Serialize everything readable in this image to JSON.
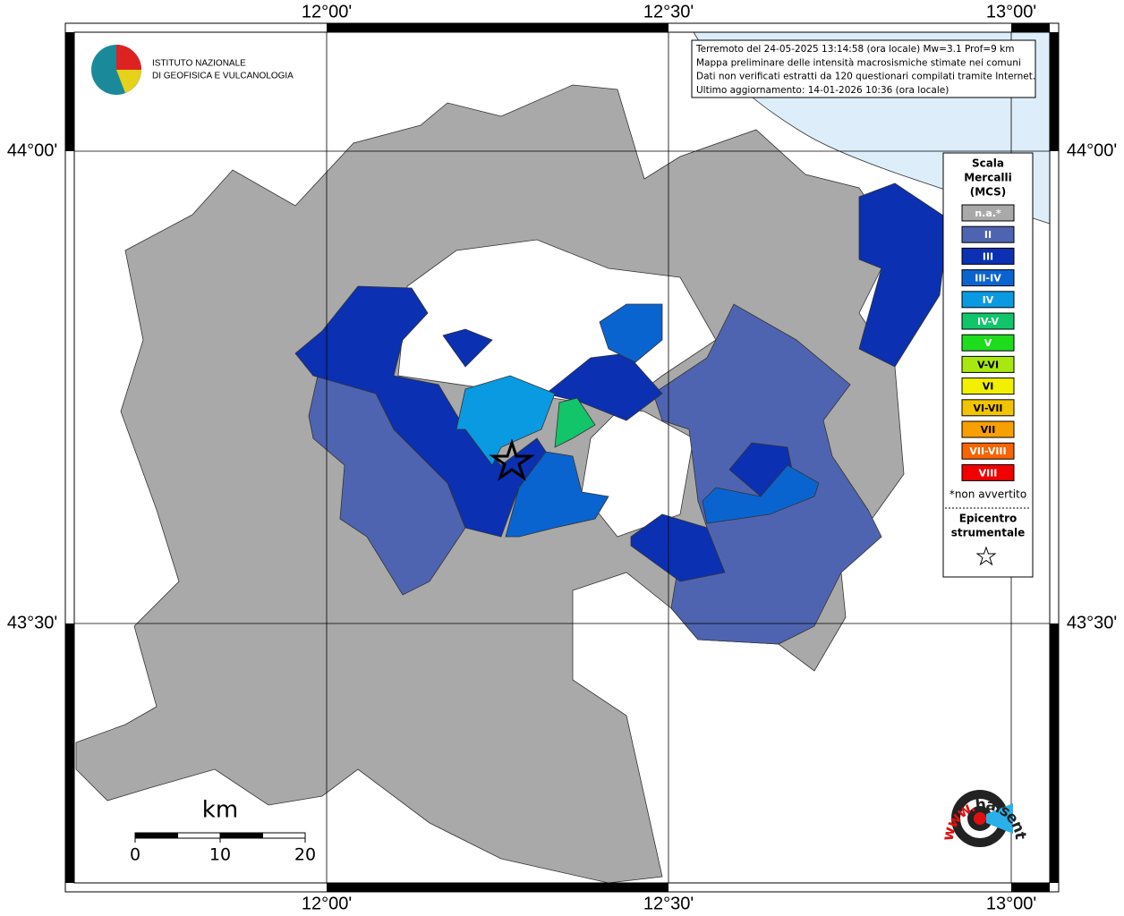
{
  "logo": {
    "lines": [
      "ISTITUTO NAZIONALE",
      "DI GEOFISICA E VULCANOLOGIA"
    ]
  },
  "axes": {
    "lon": [
      "12°00'",
      "12°30'",
      "13°00'"
    ],
    "lat": [
      "44°00'",
      "43°30'"
    ]
  },
  "info": [
    "Terremoto del 24-05-2025 13:14:58 (ora locale) Mw=3.1 Prof=9 km",
    "Mappa preliminare delle intensità macrosismiche stimate nei comuni",
    "Dati non verificati estratti da 120 questionari compilati tramite Internet.",
    "Ultimo aggiornamento: 14-01-2026 10:36 (ora locale)"
  ],
  "legend": {
    "title": [
      "Scala",
      "Mercalli",
      "(MCS)"
    ],
    "items": [
      {
        "label": "n.a.*",
        "color": "#a9a9a9"
      },
      {
        "label": "II",
        "color": "#4f64b0"
      },
      {
        "label": "III",
        "color": "#0b30b2"
      },
      {
        "label": "III-IV",
        "color": "#0a64d0"
      },
      {
        "label": "IV",
        "color": "#0a9ae2"
      },
      {
        "label": "IV-V",
        "color": "#12c46a"
      },
      {
        "label": "V",
        "color": "#1edc1e"
      },
      {
        "label": "V-VI",
        "color": "#a8e810"
      },
      {
        "label": "VI",
        "color": "#f2f000"
      },
      {
        "label": "VI-VII",
        "color": "#f2c400"
      },
      {
        "label": "VII",
        "color": "#f8a000"
      },
      {
        "label": "VII-VIII",
        "color": "#f86400"
      },
      {
        "label": "VIII",
        "color": "#f00000"
      }
    ],
    "note": "*non avvertito",
    "epicenter": [
      "Epicentro",
      "strumentale"
    ]
  },
  "scale_bar": {
    "unit": "km",
    "labels": [
      "0",
      "10",
      "20"
    ]
  },
  "site": {
    "prefix": "www.",
    "url": "haisentitoilterremoto.it"
  }
}
